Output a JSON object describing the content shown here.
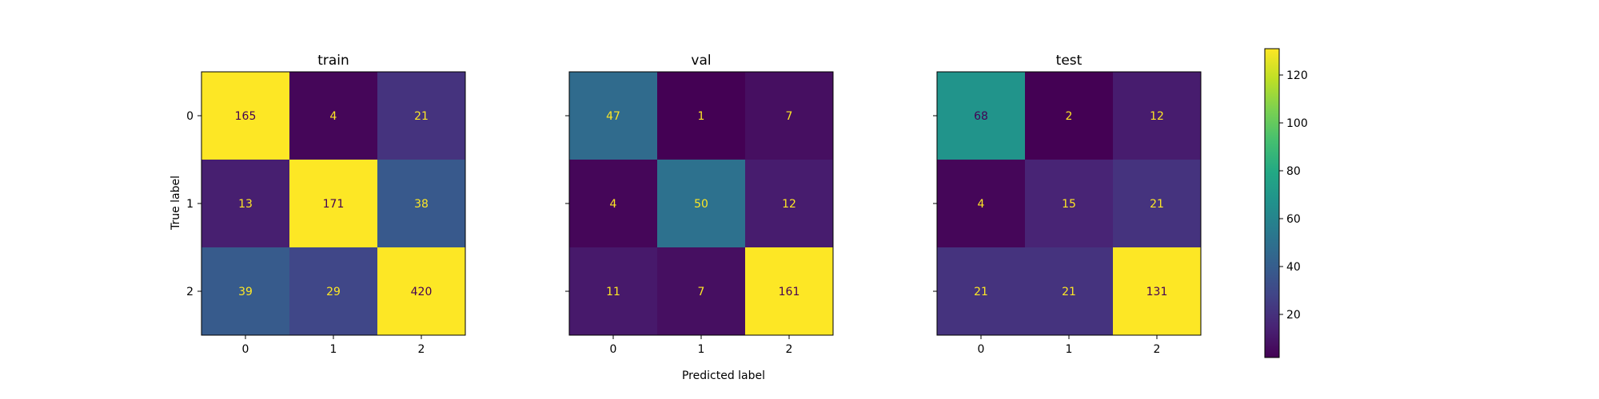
{
  "chart_data": {
    "type": "heatmap",
    "colormap": "viridis",
    "color_scale": [
      2,
      131
    ],
    "x_axis_label": "Predicted label",
    "y_axis_label": "True label",
    "class_labels": [
      "0",
      "1",
      "2"
    ],
    "colorbar_ticks": [
      20,
      40,
      60,
      80,
      100,
      120
    ],
    "panels": [
      {
        "title": "train",
        "matrix": [
          [
            165,
            4,
            21
          ],
          [
            13,
            171,
            38
          ],
          [
            39,
            29,
            420
          ]
        ]
      },
      {
        "title": "val",
        "matrix": [
          [
            47,
            1,
            7
          ],
          [
            4,
            50,
            12
          ],
          [
            11,
            7,
            161
          ]
        ]
      },
      {
        "title": "test",
        "matrix": [
          [
            68,
            2,
            12
          ],
          [
            4,
            15,
            21
          ],
          [
            21,
            21,
            131
          ]
        ]
      }
    ]
  }
}
